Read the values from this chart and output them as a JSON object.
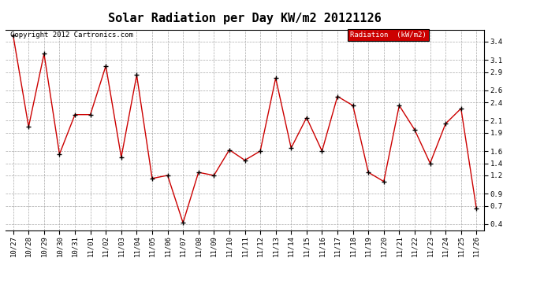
{
  "title": "Solar Radiation per Day KW/m2 20121126",
  "copyright_text": "Copyright 2012 Cartronics.com",
  "legend_label": "Radiation  (kW/m2)",
  "dates": [
    "10/27",
    "10/28",
    "10/29",
    "10/30",
    "10/31",
    "11/01",
    "11/02",
    "11/03",
    "11/04",
    "11/05",
    "11/06",
    "11/07",
    "11/08",
    "11/09",
    "11/10",
    "11/11",
    "11/12",
    "11/13",
    "11/14",
    "11/15",
    "11/16",
    "11/17",
    "11/18",
    "11/19",
    "11/20",
    "11/21",
    "11/22",
    "11/23",
    "11/24",
    "11/25",
    "11/26"
  ],
  "values": [
    3.5,
    2.0,
    3.2,
    1.55,
    2.2,
    2.2,
    3.0,
    1.5,
    2.85,
    1.15,
    1.2,
    0.42,
    1.25,
    1.2,
    1.62,
    1.45,
    1.6,
    2.8,
    1.65,
    2.15,
    1.6,
    2.5,
    2.35,
    1.25,
    1.1,
    2.35,
    1.95,
    1.4,
    2.05,
    2.3,
    0.65
  ],
  "line_color": "#cc0000",
  "marker_color": "#000000",
  "bg_color": "#ffffff",
  "grid_color": "#aaaaaa",
  "ylim": [
    0.3,
    3.6
  ],
  "yticks": [
    0.4,
    0.7,
    0.9,
    1.2,
    1.4,
    1.6,
    1.9,
    2.1,
    2.4,
    2.6,
    2.9,
    3.1,
    3.4
  ],
  "legend_bg": "#cc0000",
  "legend_text_color": "#ffffff",
  "title_fontsize": 11,
  "tick_fontsize": 6.5,
  "copyright_fontsize": 6.5
}
